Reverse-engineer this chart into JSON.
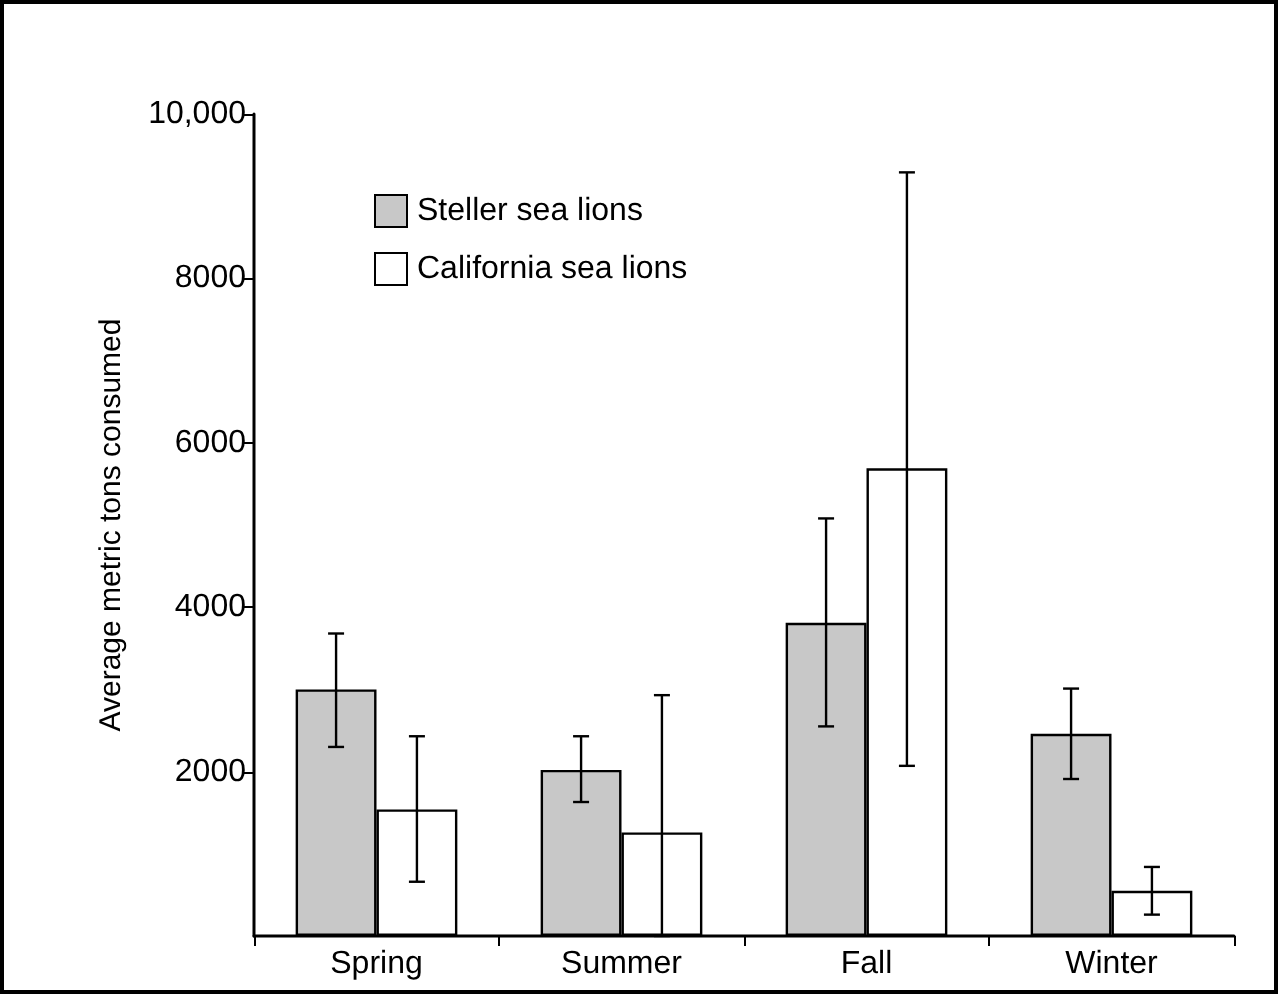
{
  "chart_data": {
    "type": "bar",
    "ylabel": "Average metric tons consumed",
    "categories": [
      "Spring",
      "Summer",
      "Fall",
      "Winter"
    ],
    "series": [
      {
        "name": "Steller sea lions",
        "color": "#c8c8c8",
        "values": [
          3000,
          2020,
          3810,
          2460
        ],
        "errors": [
          [
            2300,
            3680
          ],
          [
            1630,
            2430
          ],
          [
            2550,
            5080
          ],
          [
            1910,
            3010
          ]
        ]
      },
      {
        "name": "California sea lions",
        "color": "#ffffff",
        "values": [
          1540,
          1260,
          5690,
          550
        ],
        "errors": [
          [
            660,
            2430
          ],
          [
            0,
            2930
          ],
          [
            2070,
            9290
          ],
          [
            260,
            840
          ]
        ]
      }
    ],
    "ylim": [
      0,
      10000
    ],
    "yticks": [
      2000,
      4000,
      6000,
      8000,
      {
        "value": 10000,
        "label": "10,000"
      }
    ],
    "grid": false,
    "legend": "top left"
  }
}
